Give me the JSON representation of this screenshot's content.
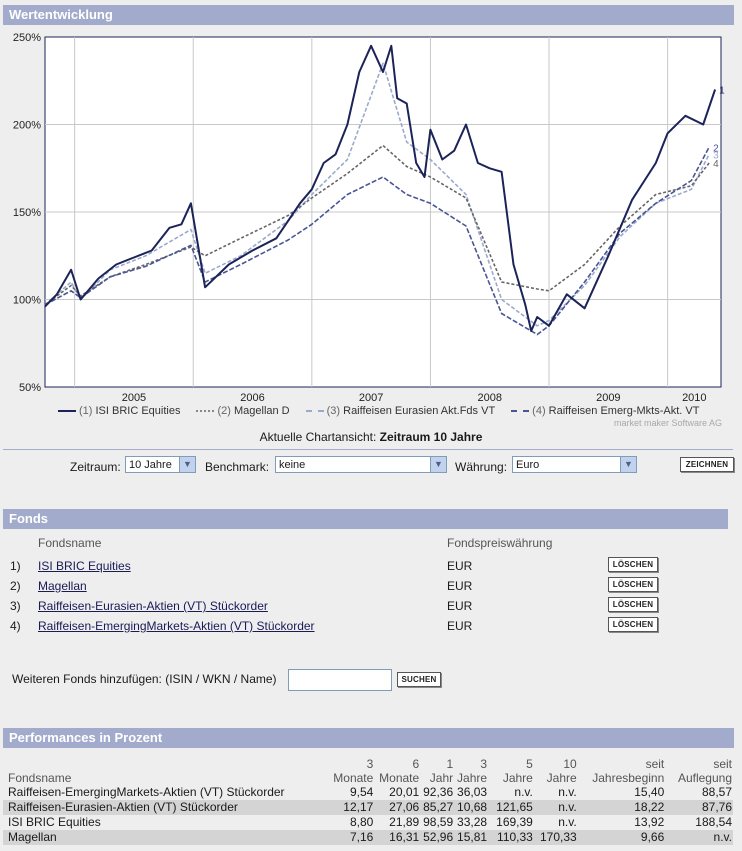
{
  "chart_section": {
    "title": "Wertentwicklung"
  },
  "chart_data": {
    "type": "line",
    "title": "Wertentwicklung",
    "y_ticks": [
      "250%",
      "200%",
      "150%",
      "100%",
      "50%"
    ],
    "ylim": [
      50,
      250
    ],
    "x_ticks": [
      "2005",
      "2006",
      "2007",
      "2008",
      "2009",
      "2010"
    ],
    "xlim": [
      2004.75,
      2010.45
    ],
    "series": [
      {
        "id": "1",
        "name": "ISI BRIC Equities",
        "color": "#1c2358",
        "dash": "",
        "x": [
          2004.75,
          2004.85,
          2004.97,
          2005.05,
          2005.2,
          2005.35,
          2005.5,
          2005.65,
          2005.8,
          2005.9,
          2005.98,
          2006.1,
          2006.3,
          2006.5,
          2006.7,
          2006.9,
          2007.0,
          2007.1,
          2007.2,
          2007.3,
          2007.4,
          2007.5,
          2007.6,
          2007.67,
          2007.72,
          2007.8,
          2007.88,
          2007.95,
          2008.0,
          2008.1,
          2008.2,
          2008.3,
          2008.4,
          2008.5,
          2008.6,
          2008.7,
          2008.8,
          2008.85,
          2008.9,
          2009.0,
          2009.15,
          2009.3,
          2009.5,
          2009.7,
          2009.9,
          2010.0,
          2010.15,
          2010.3,
          2010.4
        ],
        "y": [
          96,
          103,
          117,
          100,
          112,
          120,
          124,
          128,
          141,
          143,
          155,
          107,
          120,
          128,
          135,
          155,
          163,
          178,
          183,
          200,
          230,
          245,
          230,
          245,
          215,
          212,
          178,
          170,
          197,
          180,
          185,
          200,
          178,
          175,
          173,
          120,
          97,
          82,
          90,
          85,
          103,
          95,
          125,
          157,
          178,
          195,
          205,
          200,
          220
        ]
      },
      {
        "id": "2",
        "name": "Magellan D",
        "color": "#666666",
        "dash": "3,2",
        "x": [
          2004.75,
          2004.97,
          2005.05,
          2005.3,
          2005.6,
          2005.98,
          2006.1,
          2006.4,
          2006.8,
          2007.0,
          2007.3,
          2007.6,
          2007.8,
          2008.0,
          2008.3,
          2008.6,
          2008.9,
          2009.0,
          2009.3,
          2009.6,
          2009.9,
          2010.2,
          2010.35
        ],
        "y": [
          97,
          108,
          102,
          113,
          120,
          130,
          125,
          135,
          148,
          158,
          172,
          188,
          176,
          170,
          158,
          110,
          106,
          105,
          120,
          142,
          160,
          165,
          178
        ]
      },
      {
        "id": "3",
        "name": "Raiffeisen Eurasien Akt.Fds VT",
        "color": "#9aaacc",
        "dash": "4,2",
        "x": [
          2004.75,
          2004.97,
          2005.05,
          2005.3,
          2005.6,
          2005.98,
          2006.1,
          2006.4,
          2006.8,
          2007.0,
          2007.3,
          2007.6,
          2007.8,
          2008.0,
          2008.3,
          2008.6,
          2008.9,
          2009.0,
          2009.3,
          2009.6,
          2009.9,
          2010.2,
          2010.35
        ],
        "y": [
          97,
          110,
          100,
          117,
          125,
          140,
          115,
          125,
          145,
          160,
          180,
          235,
          190,
          180,
          160,
          100,
          85,
          88,
          108,
          136,
          155,
          163,
          183
        ]
      },
      {
        "id": "4",
        "name": "Raiffeisen Emerg-Mkts-Akt. VT",
        "color": "#4a5694",
        "dash": "5,2",
        "x": [
          2004.75,
          2004.97,
          2005.05,
          2005.3,
          2005.6,
          2005.98,
          2006.1,
          2006.4,
          2006.8,
          2007.0,
          2007.3,
          2007.6,
          2007.8,
          2008.0,
          2008.3,
          2008.6,
          2008.9,
          2009.0,
          2009.3,
          2009.6,
          2009.9,
          2010.2,
          2010.35
        ],
        "y": [
          97,
          105,
          101,
          113,
          119,
          131,
          110,
          120,
          134,
          143,
          160,
          170,
          160,
          155,
          142,
          92,
          80,
          85,
          110,
          138,
          155,
          168,
          187
        ]
      }
    ],
    "end_labels": [
      "1",
      "4",
      "3",
      "2"
    ]
  },
  "legend": [
    {
      "num": "(1)",
      "label": "ISI BRIC Equities",
      "color": "#1c2358",
      "style": "solid"
    },
    {
      "num": "(2)",
      "label": "Magellan D",
      "color": "#888888",
      "style": "dotted"
    },
    {
      "num": "(3)",
      "label": "Raiffeisen Eurasien Akt.Fds VT",
      "color": "#9aaacc",
      "style": "dashed"
    },
    {
      "num": "(4)",
      "label": "Raiffeisen Emerg-Mkts-Akt. VT",
      "color": "#4a5694",
      "style": "dashed"
    }
  ],
  "watermark": "market maker Software AG",
  "caption": {
    "prefix": "Aktuelle Chartansicht:",
    "value": "Zeitraum 10 Jahre"
  },
  "controls": {
    "zeitraum_label": "Zeitraum:",
    "zeitraum_value": "10 Jahre",
    "benchmark_label": "Benchmark:",
    "benchmark_value": "keine",
    "waehrung_label": "Währung:",
    "waehrung_value": "Euro",
    "zeichnen_button": "ZEICHNEN"
  },
  "fonds_section": {
    "title": "Fonds",
    "col_name": "Fondsname",
    "col_currency": "Fondspreiswährung",
    "rows": [
      {
        "num": "1)",
        "name": "ISI BRIC Equities",
        "currency": "EUR",
        "delete": "LÖSCHEN"
      },
      {
        "num": "2)",
        "name": "Magellan",
        "currency": "EUR",
        "delete": "LÖSCHEN"
      },
      {
        "num": "3)",
        "name": "Raiffeisen-Eurasien-Aktien (VT) Stückorder",
        "currency": "EUR",
        "delete": "LÖSCHEN"
      },
      {
        "num": "4)",
        "name": "Raiffeisen-EmergingMarkets-Aktien (VT) Stückorder",
        "currency": "EUR",
        "delete": "LÖSCHEN"
      }
    ],
    "add_label": "Weiteren Fonds hinzufügen: (ISIN / WKN / Name)",
    "add_value": "",
    "search_button": "SUCHEN"
  },
  "perf_section": {
    "title": "Performances in Prozent",
    "headers": [
      {
        "top": "",
        "bottom": "Fondsname"
      },
      {
        "top": "3",
        "bottom": "Monate"
      },
      {
        "top": "6",
        "bottom": "Monate"
      },
      {
        "top": "1",
        "bottom": "Jahr"
      },
      {
        "top": "3",
        "bottom": "Jahre"
      },
      {
        "top": "5",
        "bottom": "Jahre"
      },
      {
        "top": "10",
        "bottom": "Jahre"
      },
      {
        "top": "seit",
        "bottom": "Jahresbeginn"
      },
      {
        "top": "seit",
        "bottom": "Auflegung"
      }
    ],
    "rows": [
      [
        "Raiffeisen-EmergingMarkets-Aktien (VT) Stückorder",
        "9,54",
        "20,01",
        "92,36",
        "36,03",
        "n.v.",
        "n.v.",
        "15,40",
        "88,57"
      ],
      [
        "Raiffeisen-Eurasien-Aktien (VT) Stückorder",
        "12,17",
        "27,06",
        "85,27",
        "10,68",
        "121,65",
        "n.v.",
        "18,22",
        "87,76"
      ],
      [
        "ISI BRIC Equities",
        "8,80",
        "21,89",
        "98,59",
        "33,28",
        "169,39",
        "n.v.",
        "13,92",
        "188,54"
      ],
      [
        "Magellan",
        "7,16",
        "16,31",
        "52,96",
        "15,81",
        "110,33",
        "170,33",
        "9,66",
        "n.v."
      ]
    ]
  }
}
